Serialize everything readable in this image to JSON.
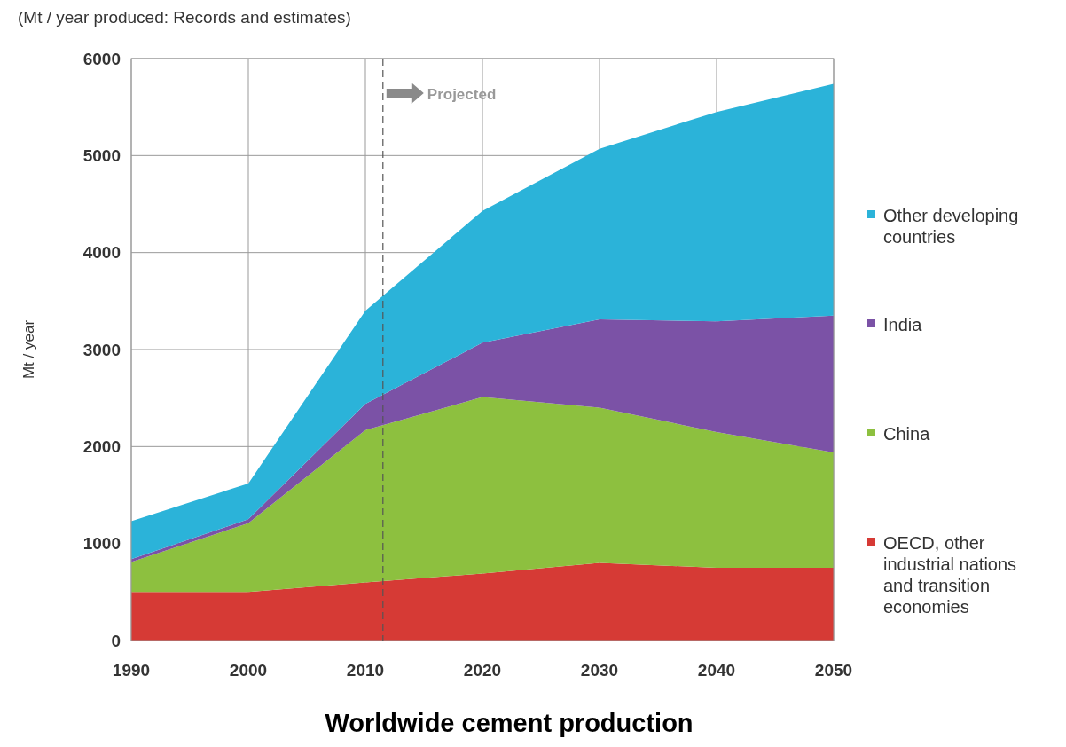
{
  "chart_data": {
    "type": "area",
    "stacked": true,
    "title": "Worldwide cement production",
    "subtitle": "(Mt / year produced: Records and estimates)",
    "ylabel": "Mt / year",
    "x": [
      1990,
      2000,
      2010,
      2020,
      2030,
      2040,
      2050
    ],
    "series": [
      {
        "name": "OECD, other industrial nations and transition economies",
        "color": "#d63a35",
        "values": [
          500,
          500,
          600,
          690,
          800,
          750,
          750
        ]
      },
      {
        "name": "China",
        "color": "#8dc03f",
        "values": [
          310,
          710,
          1570,
          1820,
          1600,
          1400,
          1190
        ]
      },
      {
        "name": "India",
        "color": "#7b52a6",
        "values": [
          30,
          40,
          270,
          560,
          910,
          1140,
          1410
        ]
      },
      {
        "name": "Other developing countries",
        "color": "#2bb3d9",
        "values": [
          390,
          370,
          960,
          1360,
          1760,
          2160,
          2390
        ]
      }
    ],
    "xlim": [
      1990,
      2050
    ],
    "xticks": [
      1990,
      2000,
      2010,
      2020,
      2030,
      2040,
      2050
    ],
    "ylim": [
      0,
      6000
    ],
    "yticks": [
      0,
      1000,
      2000,
      3000,
      4000,
      5000,
      6000
    ],
    "grid": true,
    "legend": "right",
    "ref_lines": [
      {
        "axis": "x",
        "value": 2011.5,
        "label": "Projected",
        "color": "#555555",
        "line_style": "dashed"
      }
    ]
  }
}
